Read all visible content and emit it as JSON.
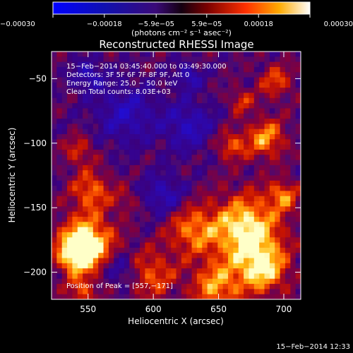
{
  "chart_data": {
    "type": "heatmap",
    "title": "Reconstructed RHESSI Image",
    "xlabel": "Heliocentric X (arcsec)",
    "ylabel": "Heliocentric Y (arcsec)",
    "xlim": [
      522,
      713
    ],
    "ylim": [
      -221,
      -29
    ],
    "x_ticks": [
      550,
      600,
      650,
      700
    ],
    "x_tick_labels": [
      "550",
      "600",
      "650",
      "700"
    ],
    "y_ticks": [
      -50,
      -100,
      -150,
      -200
    ],
    "y_tick_labels": [
      "−50",
      "−100",
      "−150",
      "−200"
    ],
    "colorbar": {
      "range": [
        -0.0003,
        0.0003
      ],
      "ticks": [
        -0.0003,
        -0.00018,
        -5.9e-05,
        5.9e-05,
        0.00018,
        0.0003
      ],
      "tick_labels": [
        "−0.00030",
        "−0.00018",
        "−5.9e−05",
        "5.9e−05",
        "0.00018",
        "0.00030"
      ],
      "unit_label": "(photons cm⁻² s⁻¹ asec⁻²)"
    },
    "annotations": [
      "15−Feb−2014 03:45:40.000 to 03:49:30.000",
      "Detectors: 3F 5F 6F 7F 8F 9F, Att 0",
      "Energy Range: 25.0 − 50.0 keV",
      "Clean    Total counts: 8.03E+03"
    ],
    "peak_label": "Position of Peak = [557,−171]",
    "peak": [
      557,
      -171
    ],
    "grid": false
  },
  "footer": {
    "timestamp": "15−Feb−2014 12:33"
  }
}
